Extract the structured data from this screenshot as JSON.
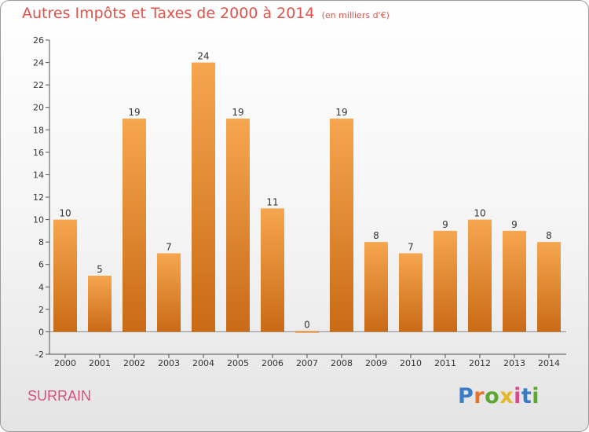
{
  "title": "Autres Impôts et Taxes de 2000 à 2014",
  "subtitle": "(en milliers d'€)",
  "commune": "SURRAIN",
  "logo": {
    "letters": [
      "P",
      "r",
      "o",
      "x",
      "i",
      "t",
      "i"
    ]
  },
  "colors": {
    "title": "#e0524a",
    "commune": "#d8507f",
    "bar_top": "#f6a64f",
    "bar_bottom": "#c96a16",
    "axis": "#555555"
  },
  "chart_data": {
    "type": "bar",
    "title": "Autres Impôts et Taxes de 2000 à 2014",
    "subtitle": "(en milliers d'€)",
    "categories": [
      "2000",
      "2001",
      "2002",
      "2003",
      "2004",
      "2005",
      "2006",
      "2007",
      "2008",
      "2009",
      "2010",
      "2011",
      "2012",
      "2013",
      "2014"
    ],
    "values": [
      10,
      5,
      19,
      7,
      24,
      19,
      11,
      0,
      19,
      8,
      7,
      9,
      10,
      9,
      8
    ],
    "ylim": [
      -2,
      26
    ],
    "yticks": [
      -2,
      0,
      2,
      4,
      6,
      8,
      10,
      12,
      14,
      16,
      18,
      20,
      22,
      24,
      26
    ],
    "grid": false,
    "data_labels": true
  }
}
